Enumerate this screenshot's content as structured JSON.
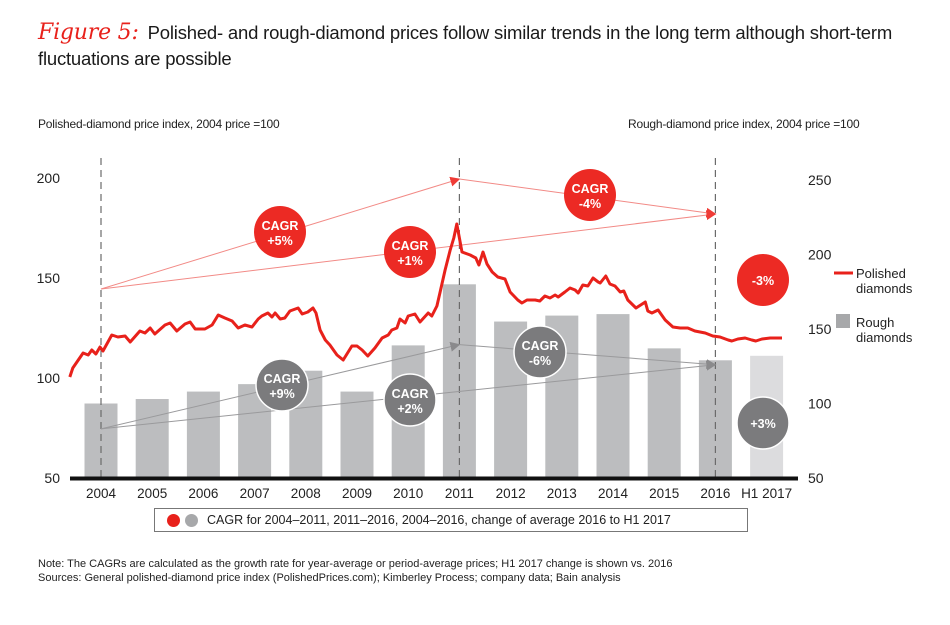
{
  "title": {
    "figure_label": "Figure 5:",
    "text": "Polished- and rough-diamond prices follow similar trends in the long term although short-term fluctuations are possible"
  },
  "key": {
    "text": "CAGR for 2004–2011, 2011–2016, 2004–2016, change of average 2016 to H1 2017",
    "colors": {
      "red": "#e8211b",
      "gray": "#a7a8aa"
    }
  },
  "notes": {
    "note": "Note: The CAGRs are calculated as the growth rate for year-average or period-average prices; H1 2017 change is shown vs. 2016",
    "sources": "Sources: General polished-diamond price index (PolishedPrices.com); Kimberley Process; company data; Bain analysis"
  },
  "chart_data": {
    "type": "bar+line",
    "title": "Polished- and rough-diamond prices follow similar trends in the long term although short-term fluctuations are possible",
    "ylabel_left": "Polished-diamond price index, 2004 price =100",
    "ylabel_right": "Rough-diamond price index, 2004  price =100",
    "ylim_left": [
      50,
      200
    ],
    "yticks_left": [
      50,
      100,
      150,
      200
    ],
    "ylim_right": [
      50,
      250
    ],
    "yticks_right": [
      50,
      100,
      150,
      200,
      250
    ],
    "categories": [
      "2004",
      "2005",
      "2006",
      "2007",
      "2008",
      "2009",
      "2010",
      "2011",
      "2012",
      "2013",
      "2014",
      "2015",
      "2016",
      "H1 2017"
    ],
    "grid": false,
    "legend": {
      "placement": "right",
      "entries": [
        {
          "name": "Polished diamonds",
          "type": "line",
          "color": "#e8211b"
        },
        {
          "name": "Rough diamonds",
          "type": "bar",
          "color": "#a7a8aa"
        }
      ]
    },
    "series": [
      {
        "name": "Rough diamonds",
        "type": "bar",
        "axis": "right",
        "color": "#bcbdbf",
        "highlight_color": "#dcdcde",
        "values": [
          100,
          103,
          108,
          113,
          122,
          108,
          139,
          180,
          155,
          159,
          160,
          137,
          129,
          132
        ]
      },
      {
        "name": "Polished diamonds",
        "type": "line",
        "axis": "left",
        "color": "#e8211b",
        "x_unit": "year (category index, 2004 = 0)",
        "points": [
          [
            -0.61,
            100.5
          ],
          [
            -0.55,
            105
          ],
          [
            -0.35,
            112.5
          ],
          [
            -0.25,
            111.5
          ],
          [
            -0.18,
            114
          ],
          [
            -0.1,
            112
          ],
          [
            -0.02,
            115.5
          ],
          [
            0.04,
            113.5
          ],
          [
            0.21,
            121.5
          ],
          [
            0.33,
            120.5
          ],
          [
            0.47,
            121
          ],
          [
            0.57,
            118
          ],
          [
            0.76,
            123.5
          ],
          [
            0.86,
            122.5
          ],
          [
            0.96,
            125
          ],
          [
            1.05,
            122
          ],
          [
            1.25,
            126.5
          ],
          [
            1.35,
            127.5
          ],
          [
            1.48,
            123.5
          ],
          [
            1.64,
            127
          ],
          [
            1.74,
            128
          ],
          [
            1.84,
            124.5
          ],
          [
            2.03,
            124.5
          ],
          [
            2.17,
            126.5
          ],
          [
            2.29,
            131.5
          ],
          [
            2.42,
            130
          ],
          [
            2.56,
            128.5
          ],
          [
            2.68,
            125
          ],
          [
            2.81,
            126.5
          ],
          [
            2.95,
            125.5
          ],
          [
            3.07,
            129.5
          ],
          [
            3.14,
            131
          ],
          [
            3.26,
            132.5
          ],
          [
            3.34,
            130.5
          ],
          [
            3.4,
            132.5
          ],
          [
            3.5,
            129.5
          ],
          [
            3.59,
            130
          ],
          [
            3.69,
            133.5
          ],
          [
            3.85,
            135
          ],
          [
            3.93,
            132
          ],
          [
            4.04,
            133
          ],
          [
            4.14,
            135
          ],
          [
            4.2,
            132.5
          ],
          [
            4.28,
            124
          ],
          [
            4.38,
            119
          ],
          [
            4.47,
            116.5
          ],
          [
            4.61,
            111.5
          ],
          [
            4.73,
            109
          ],
          [
            4.9,
            116
          ],
          [
            5.0,
            116
          ],
          [
            5.1,
            114
          ],
          [
            5.21,
            111
          ],
          [
            5.35,
            115
          ],
          [
            5.49,
            120
          ],
          [
            5.61,
            121.5
          ],
          [
            5.68,
            124
          ],
          [
            5.78,
            125
          ],
          [
            5.84,
            129.5
          ],
          [
            5.94,
            127.5
          ],
          [
            6.0,
            131
          ],
          [
            6.13,
            132
          ],
          [
            6.23,
            128
          ],
          [
            6.39,
            132.5
          ],
          [
            6.46,
            131
          ],
          [
            6.56,
            136
          ],
          [
            6.62,
            142.5
          ],
          [
            6.72,
            154
          ],
          [
            6.82,
            164
          ],
          [
            6.89,
            170
          ],
          [
            6.95,
            177
          ],
          [
            7.05,
            163
          ],
          [
            7.21,
            161.5
          ],
          [
            7.32,
            160
          ],
          [
            7.38,
            156.5
          ],
          [
            7.46,
            163
          ],
          [
            7.54,
            157
          ],
          [
            7.64,
            153
          ],
          [
            7.75,
            150.5
          ],
          [
            7.89,
            149.5
          ],
          [
            7.99,
            143
          ],
          [
            8.14,
            139
          ],
          [
            8.22,
            137.5
          ],
          [
            8.32,
            139
          ],
          [
            8.48,
            139
          ],
          [
            8.57,
            138.5
          ],
          [
            8.67,
            141
          ],
          [
            8.77,
            140
          ],
          [
            8.87,
            141.5
          ],
          [
            8.93,
            140.5
          ],
          [
            9.06,
            143
          ],
          [
            9.16,
            145
          ],
          [
            9.26,
            144
          ],
          [
            9.32,
            142.5
          ],
          [
            9.41,
            146.5
          ],
          [
            9.51,
            146
          ],
          [
            9.61,
            150
          ],
          [
            9.71,
            148
          ],
          [
            9.75,
            147.5
          ],
          [
            9.86,
            151
          ],
          [
            9.94,
            147
          ],
          [
            10.04,
            146
          ],
          [
            10.14,
            143
          ],
          [
            10.21,
            143.5
          ],
          [
            10.29,
            139
          ],
          [
            10.45,
            135
          ],
          [
            10.57,
            137
          ],
          [
            10.63,
            138
          ],
          [
            10.68,
            133.5
          ],
          [
            10.76,
            132.5
          ],
          [
            10.88,
            134
          ],
          [
            11.02,
            129
          ],
          [
            11.17,
            125.5
          ],
          [
            11.31,
            125
          ],
          [
            11.46,
            125
          ],
          [
            11.6,
            123.5
          ],
          [
            11.8,
            122.5
          ],
          [
            11.95,
            121
          ],
          [
            12.09,
            120.5
          ],
          [
            12.25,
            119
          ],
          [
            12.32,
            118.5
          ],
          [
            12.44,
            119.5
          ],
          [
            12.58,
            120
          ],
          [
            12.71,
            119
          ],
          [
            12.79,
            118.5
          ],
          [
            12.91,
            119.5
          ],
          [
            13.07,
            120
          ],
          [
            13.3,
            120
          ]
        ]
      }
    ],
    "annotations": [
      {
        "label_top": "CAGR",
        "label_bottom": "+5%",
        "color": "red",
        "period": "2004–2011",
        "series": "Polished diamonds"
      },
      {
        "label_top": "CAGR",
        "label_bottom": "+1%",
        "color": "red",
        "period": "2004–2016",
        "series": "Polished diamonds"
      },
      {
        "label_top": "CAGR",
        "label_bottom": "-4%",
        "color": "red",
        "period": "2011–2016",
        "series": "Polished diamonds"
      },
      {
        "label_top": "",
        "label_bottom": "-3%",
        "color": "red",
        "period": "2016 to H1 2017",
        "series": "Polished diamonds"
      },
      {
        "label_top": "CAGR",
        "label_bottom": "+9%",
        "color": "gray",
        "period": "2004–2011",
        "series": "Rough diamonds"
      },
      {
        "label_top": "CAGR",
        "label_bottom": "+2%",
        "color": "gray",
        "period": "2004–2016",
        "series": "Rough diamonds"
      },
      {
        "label_top": "CAGR",
        "label_bottom": "-6%",
        "color": "gray",
        "period": "2011–2016",
        "series": "Rough diamonds"
      },
      {
        "label_top": "",
        "label_bottom": "+3%",
        "color": "gray",
        "period": "2016 to H1 2017",
        "series": "Rough diamonds"
      }
    ],
    "reference_lines": [
      "2004",
      "2011",
      "2016"
    ]
  }
}
